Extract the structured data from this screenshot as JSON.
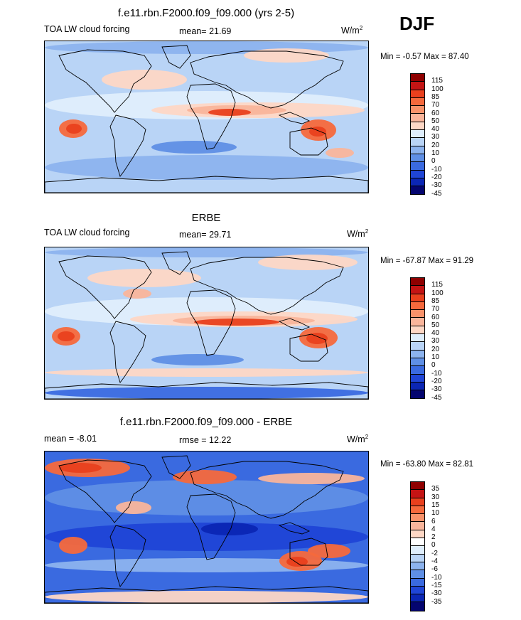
{
  "season": "DJF",
  "panels": [
    {
      "title": "f.e11.rbn.F2000.f09_f09.000 (yrs 2-5)",
      "left_label": "TOA LW cloud forcing",
      "stat_label": "mean=",
      "stat_value": "21.69",
      "units": "W/m",
      "units_exp": "2",
      "minmax": "Min =  -0.57 Max =  87.40",
      "scale": [
        "115",
        "100",
        "85",
        "70",
        "60",
        "50",
        "40",
        "30",
        "20",
        "10",
        "0",
        "-10",
        "-20",
        "-30",
        "-45"
      ],
      "colors": [
        "#8e0000",
        "#c41414",
        "#e9401d",
        "#f5693c",
        "#f8926a",
        "#f9b59b",
        "#fdd7c5",
        "#dfeefc",
        "#b9d4f6",
        "#8cb3ee",
        "#5f8fe5",
        "#3a6ae0",
        "#1f45d6",
        "#0b26b4",
        "#04056f"
      ]
    },
    {
      "title": "ERBE",
      "left_label": "TOA LW cloud forcing",
      "stat_label": "mean=",
      "stat_value": "29.71",
      "units": "W/m",
      "units_exp": "2",
      "minmax": "Min = -67.87 Max =  91.29",
      "scale": [
        "115",
        "100",
        "85",
        "70",
        "60",
        "50",
        "40",
        "30",
        "20",
        "10",
        "0",
        "-10",
        "-20",
        "-30",
        "-45"
      ],
      "colors": [
        "#8e0000",
        "#c41414",
        "#e9401d",
        "#f5693c",
        "#f8926a",
        "#f9b59b",
        "#fdd7c5",
        "#dfeefc",
        "#b9d4f6",
        "#8cb3ee",
        "#5f8fe5",
        "#3a6ae0",
        "#1f45d6",
        "#0b26b4",
        "#04056f"
      ]
    },
    {
      "title": "f.e11.rbn.F2000.f09_f09.000 - ERBE",
      "left_label": "mean =  -8.01",
      "stat_label": "rmse =",
      "stat_value": "12.22",
      "units": "W/m",
      "units_exp": "2",
      "minmax": "Min = -63.80 Max =  82.81",
      "scale": [
        "35",
        "30",
        "15",
        "10",
        "6",
        "4",
        "2",
        "0",
        "-2",
        "-4",
        "-6",
        "-10",
        "-15",
        "-30",
        "-35"
      ],
      "colors": [
        "#8e0000",
        "#c41414",
        "#e9401d",
        "#f5693c",
        "#f8926a",
        "#f9b59b",
        "#fdd7c5",
        "#ffffff",
        "#dfeefc",
        "#b9d4f6",
        "#8cb3ee",
        "#5f8fe5",
        "#3a6ae0",
        "#1f45d6",
        "#0b26b4",
        "#04056f"
      ]
    }
  ]
}
